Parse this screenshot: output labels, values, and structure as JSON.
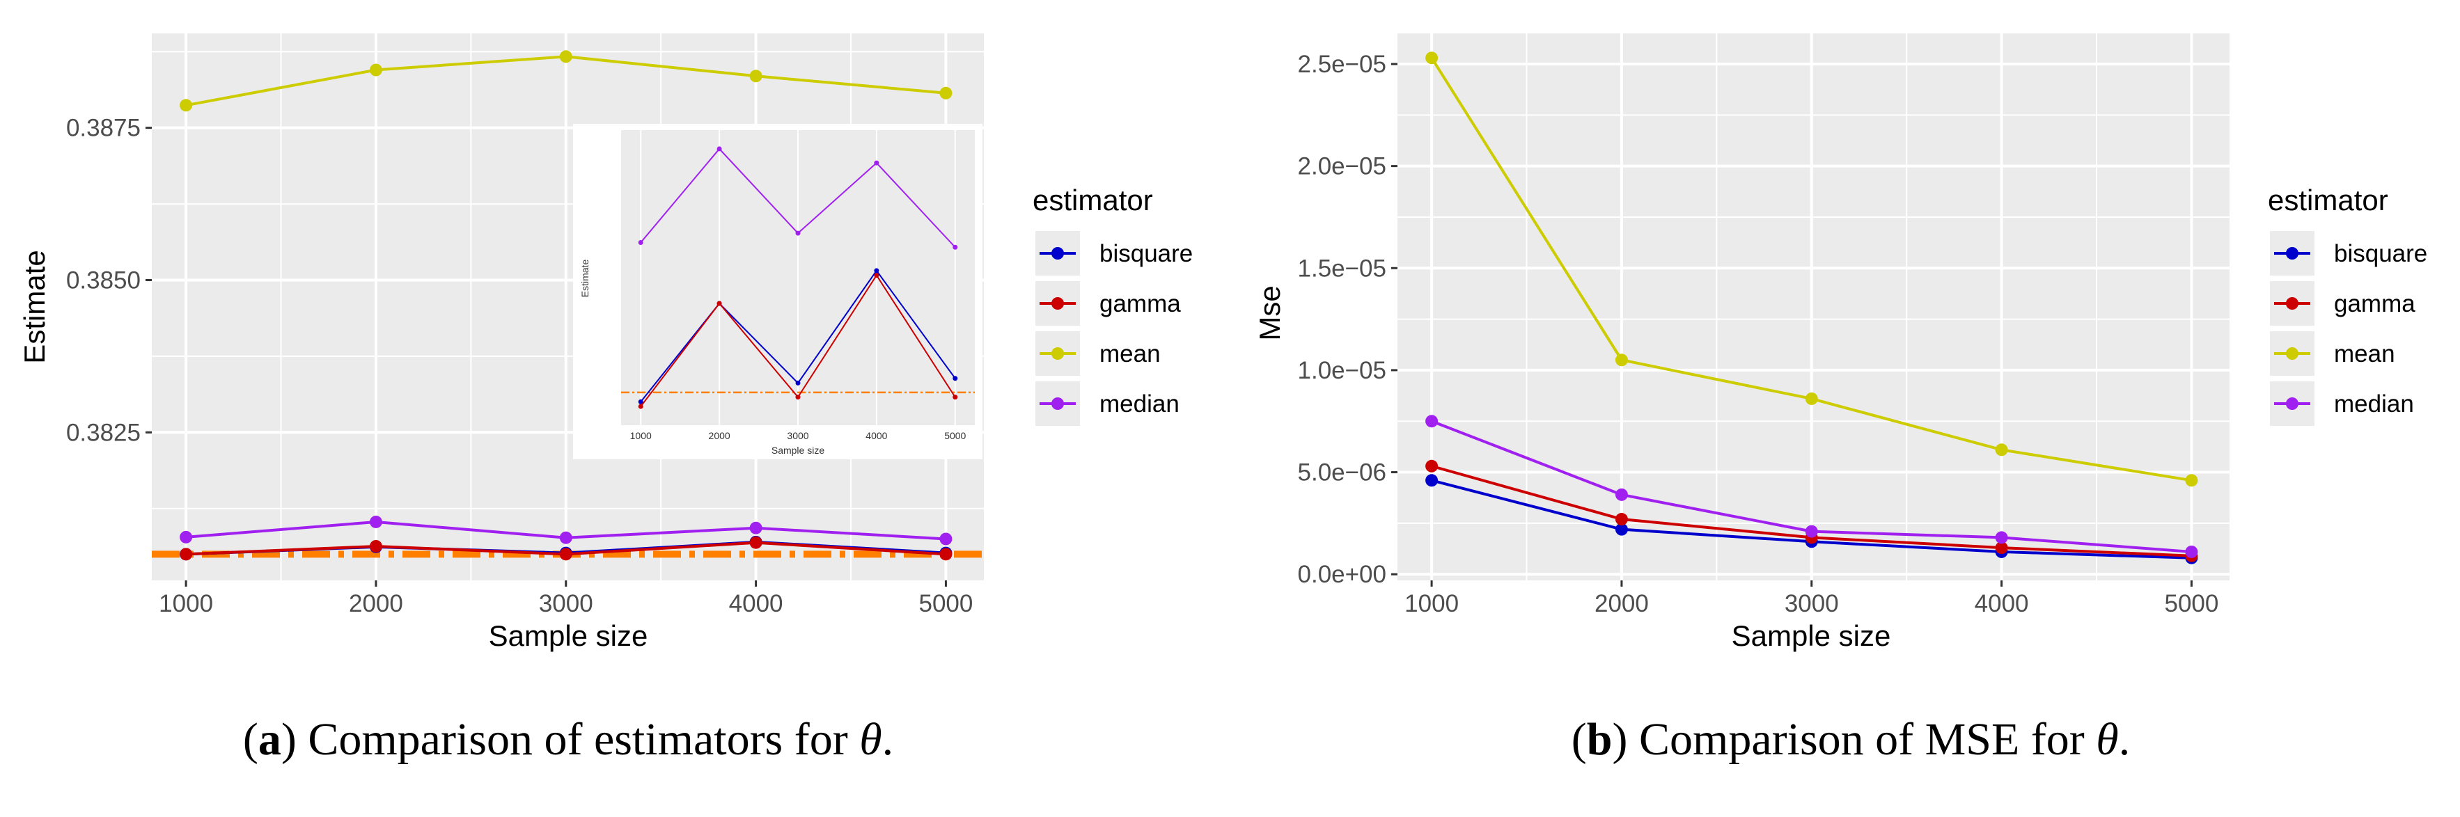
{
  "captions": {
    "a": {
      "label": "a",
      "text": ") Comparison of estimators for ",
      "symbol": "θ",
      "end": "."
    },
    "b": {
      "label": "b",
      "text": ") Comparison of MSE for ",
      "symbol": "θ",
      "end": "."
    }
  },
  "chart_data": [
    {
      "type": "line",
      "panel": "a",
      "xlabel": "Sample size",
      "ylabel": "Estimate",
      "x": [
        1000,
        2000,
        3000,
        4000,
        5000
      ],
      "xticks": [
        "1000",
        "2000",
        "3000",
        "4000",
        "5000"
      ],
      "xlim": [
        820,
        5200
      ],
      "ylim": [
        0.38007,
        0.38905
      ],
      "yticks": [
        0.3825,
        0.385,
        0.3875
      ],
      "ytick_labels": [
        "0.3825",
        "0.3850",
        "0.3875"
      ],
      "grid": true,
      "legend_title": "estimator",
      "legend_position": "right",
      "series": [
        {
          "name": "bisquare",
          "color": "#0000cc",
          "values": [
            0.3805,
            0.38062,
            0.38052,
            0.3807,
            0.38052
          ]
        },
        {
          "name": "gamma",
          "color": "#cc0000",
          "values": [
            0.3805,
            0.38063,
            0.3805,
            0.38069,
            0.3805
          ]
        },
        {
          "name": "mean",
          "color": "#cccc00",
          "values": [
            0.38787,
            0.38845,
            0.38867,
            0.38835,
            0.38807
          ]
        },
        {
          "name": "median",
          "color": "#a020f0",
          "values": [
            0.38078,
            0.38103,
            0.38077,
            0.38093,
            0.38075
          ]
        }
      ],
      "reference_line": {
        "value": 0.3805,
        "color": "#ff7f00",
        "style": "dashdot"
      },
      "inset": {
        "xlabel": "Sample size",
        "ylabel": "Estimate",
        "xticks": [
          "1000",
          "2000",
          "3000",
          "4000",
          "5000"
        ],
        "x": [
          1000,
          2000,
          3000,
          4000,
          5000
        ],
        "ylim": [
          0.38045,
          0.38108
        ],
        "series": [
          {
            "name": "bisquare",
            "color": "#0000cc",
            "values": [
              0.3805,
              0.38071,
              0.38054,
              0.38078,
              0.38055
            ]
          },
          {
            "name": "gamma",
            "color": "#cc0000",
            "values": [
              0.38049,
              0.38071,
              0.38051,
              0.38077,
              0.38051
            ]
          },
          {
            "name": "median",
            "color": "#a020f0",
            "values": [
              0.38084,
              0.38104,
              0.38086,
              0.38101,
              0.38083
            ]
          }
        ],
        "reference_line": {
          "value": 0.38052,
          "color": "#ff7f00",
          "style": "dashdot"
        }
      }
    },
    {
      "type": "line",
      "panel": "b",
      "xlabel": "Sample size",
      "ylabel": "Mse",
      "x": [
        1000,
        2000,
        3000,
        4000,
        5000
      ],
      "xticks": [
        "1000",
        "2000",
        "3000",
        "4000",
        "5000"
      ],
      "xlim": [
        820,
        5200
      ],
      "ylim": [
        -3e-07,
        2.65e-05
      ],
      "yticks": [
        0,
        5e-06,
        1e-05,
        1.5e-05,
        2e-05,
        2.5e-05
      ],
      "ytick_labels": [
        "0.0e+00",
        "5.0e−06",
        "1.0e−05",
        "1.5e−05",
        "2.0e−05",
        "2.5e−05"
      ],
      "grid": true,
      "legend_title": "estimator",
      "legend_position": "right",
      "series": [
        {
          "name": "bisquare",
          "color": "#0000cc",
          "values": [
            4.6e-06,
            2.2e-06,
            1.6e-06,
            1.1e-06,
            8e-07
          ]
        },
        {
          "name": "gamma",
          "color": "#cc0000",
          "values": [
            5.3e-06,
            2.7e-06,
            1.8e-06,
            1.3e-06,
            9e-07
          ]
        },
        {
          "name": "mean",
          "color": "#cccc00",
          "values": [
            2.53e-05,
            1.05e-05,
            8.6e-06,
            6.1e-06,
            4.6e-06
          ]
        },
        {
          "name": "median",
          "color": "#a020f0",
          "values": [
            7.5e-06,
            3.9e-06,
            2.1e-06,
            1.8e-06,
            1.1e-06
          ]
        }
      ]
    }
  ]
}
